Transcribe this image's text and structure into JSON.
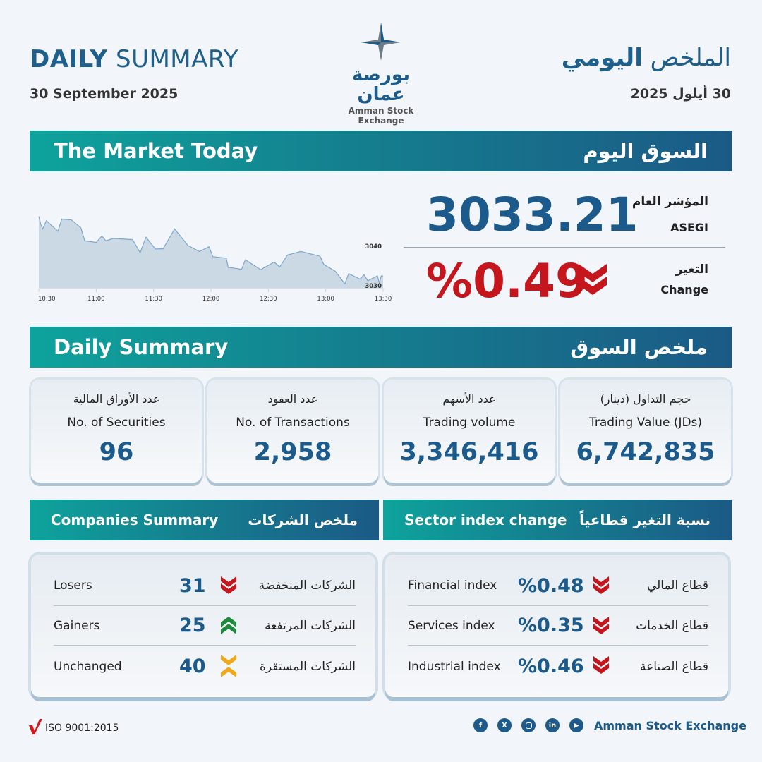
{
  "header": {
    "title_en_bold": "DAILY",
    "title_en_rest": "SUMMARY",
    "date_en": "30 September 2025",
    "title_ar_rest": "الملخص",
    "title_ar_bold": "اليومي",
    "date_ar": "30 أيلول 2025",
    "logo_ar": "بورصة عمان",
    "logo_en": "Amman Stock Exchange"
  },
  "market": {
    "bar_en": "The Market Today",
    "bar_ar": "السوق اليوم",
    "index_label_ar": "المؤشر العام",
    "index_label_en": "ASEGI",
    "index_value": "3033.21",
    "change_label_ar": "التغير",
    "change_label_en": "Change",
    "change_value": "%0.49",
    "change_direction": "down",
    "down_color": "#c4161c"
  },
  "chart_data": {
    "type": "area",
    "x_ticks": [
      "10:30",
      "11:00",
      "11:30",
      "12:00",
      "12:30",
      "13:00",
      "13:30"
    ],
    "y_ticks": [
      "3040",
      "3030"
    ],
    "ylim": [
      3029.3,
      3047.5
    ],
    "x": [
      "10:30",
      "10:31",
      "10:32",
      "10:34",
      "10:40",
      "10:42",
      "10:47",
      "10:52",
      "10:54",
      "11:00",
      "11:03",
      "11:05",
      "11:09",
      "11:19",
      "11:23",
      "11:26",
      "11:31",
      "11:35",
      "11:41",
      "11:48",
      "11:54",
      "11:59",
      "12:01",
      "12:08",
      "12:09",
      "12:16",
      "12:18",
      "12:26",
      "12:33",
      "12:36",
      "12:40",
      "12:47",
      "12:57",
      "12:59",
      "13:05",
      "13:10",
      "13:12",
      "13:18",
      "13:20",
      "13:22",
      "13:27",
      "13:28",
      "13:29",
      "13:30"
    ],
    "values": [
      3047.4,
      3045.4,
      3044.2,
      3046.3,
      3043.6,
      3046.7,
      3046.5,
      3044.5,
      3041.2,
      3040.8,
      3042.4,
      3041.2,
      3041.8,
      3041.5,
      3038.2,
      3042.1,
      3039.1,
      3039.2,
      3044.2,
      3040,
      3038.5,
      3039.7,
      3037.2,
      3036.8,
      3034.5,
      3034,
      3036.4,
      3033.9,
      3035.8,
      3034.6,
      3037.6,
      3038.5,
      3037.3,
      3035.2,
      3033.5,
      3030.3,
      3032.9,
      3031.5,
      3032.6,
      3031.1,
      3032.3,
      3030.5,
      3032.3,
      3032.3
    ],
    "line_color": "#7ea6cf",
    "fill_color": "#cbd9e4",
    "grid": false
  },
  "summary": {
    "bar_en": "Daily Summary",
    "bar_ar": "ملخص السوق",
    "cards": [
      {
        "ar": "عدد الأوراق المالية",
        "en": "No. of Securities",
        "value": "96"
      },
      {
        "ar": "عدد العقود",
        "en": "No. of Transactions",
        "value": "2,958"
      },
      {
        "ar": "عدد الأسهم",
        "en": "Trading volume",
        "value": "3,346,416"
      },
      {
        "ar": "حجم التداول (دينار)",
        "en": "Trading Value (JDs)",
        "value": "6,742,835"
      }
    ]
  },
  "companies": {
    "bar_en": "Companies Summary",
    "bar_ar": "ملخص الشركات",
    "rows": [
      {
        "en": "Losers",
        "value": "31",
        "ar": "الشركات المنخفضة",
        "icon": "double-chevron-down",
        "color": "#c4161c"
      },
      {
        "en": "Gainers",
        "value": "25",
        "ar": "الشركات المرتفعة",
        "icon": "double-chevron-up",
        "color": "#1e8a3c"
      },
      {
        "en": "Unchanged",
        "value": "40",
        "ar": "الشركات المستقرة",
        "icon": "chevrons-converge",
        "color": "#f0a81c"
      }
    ]
  },
  "sectors": {
    "bar_en": "Sector index change",
    "bar_ar": "نسبة التغير قطاعياً",
    "rows": [
      {
        "en": "Financial index",
        "value": "%0.48",
        "ar": "قطاع المالي",
        "icon": "double-chevron-down"
      },
      {
        "en": "Services index",
        "value": "%0.35",
        "ar": "قطاع الخدمات",
        "icon": "double-chevron-down"
      },
      {
        "en": "Industrial index",
        "value": "%0.46",
        "ar": "قطاع الصناعة",
        "icon": "double-chevron-down"
      }
    ]
  },
  "footer": {
    "iso": "ISO 9001:2015",
    "brand": "Amman Stock Exchange",
    "social": [
      "facebook",
      "x",
      "instagram",
      "linkedin",
      "youtube"
    ]
  }
}
